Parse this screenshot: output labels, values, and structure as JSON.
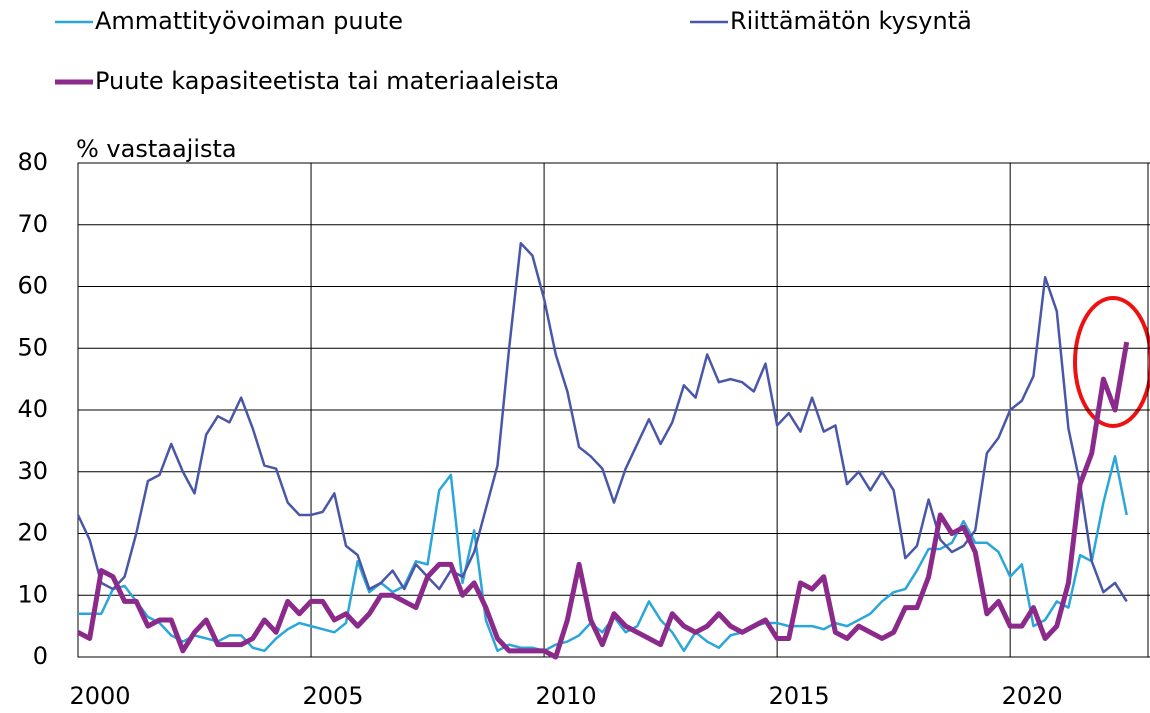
{
  "chart_data": {
    "type": "line",
    "y_label": "% vastaajista",
    "x": [
      2000,
      2000.25,
      2000.5,
      2000.75,
      2001,
      2001.25,
      2001.5,
      2001.75,
      2002,
      2002.25,
      2002.5,
      2002.75,
      2003,
      2003.25,
      2003.5,
      2003.75,
      2004,
      2004.25,
      2004.5,
      2004.75,
      2005,
      2005.25,
      2005.5,
      2005.75,
      2006,
      2006.25,
      2006.5,
      2006.75,
      2007,
      2007.25,
      2007.5,
      2007.75,
      2008,
      2008.25,
      2008.5,
      2008.75,
      2009,
      2009.25,
      2009.5,
      2009.75,
      2010,
      2010.25,
      2010.5,
      2010.75,
      2011,
      2011.25,
      2011.5,
      2011.75,
      2012,
      2012.25,
      2012.5,
      2012.75,
      2013,
      2013.25,
      2013.5,
      2013.75,
      2014,
      2014.25,
      2014.5,
      2014.75,
      2015,
      2015.25,
      2015.5,
      2015.75,
      2016,
      2016.25,
      2016.5,
      2016.75,
      2017,
      2017.25,
      2017.5,
      2017.75,
      2018,
      2018.25,
      2018.5,
      2018.75,
      2019,
      2019.25,
      2019.5,
      2019.75,
      2020,
      2020.25,
      2020.5,
      2020.75,
      2021,
      2021.25,
      2021.5,
      2021.75,
      2022,
      2022.25,
      2022.5
    ],
    "series": [
      {
        "name": "Ammattityövoiman puute",
        "color": "#2ba6d9",
        "values": [
          7,
          7,
          7,
          11,
          11.5,
          9,
          6.5,
          5.5,
          3.5,
          2.5,
          3.5,
          3,
          2.5,
          3.5,
          3.5,
          1.5,
          1,
          3,
          4.5,
          5.5,
          5,
          4.5,
          4,
          5.5,
          15.5,
          10.5,
          12,
          10.5,
          11.5,
          15.5,
          15,
          27,
          29.5,
          12,
          20.5,
          6,
          1,
          2,
          1.5,
          1.5,
          1,
          2,
          2.5,
          3.5,
          5.5,
          4,
          6.5,
          4,
          5,
          9,
          6,
          4,
          1,
          4,
          2.5,
          1.5,
          3.5,
          4,
          5,
          5.5,
          5.5,
          5,
          5,
          5,
          4.5,
          5.5,
          5,
          6,
          7,
          9,
          10.5,
          11,
          14,
          17.5,
          17.5,
          18.5,
          22,
          18.5,
          18.5,
          17,
          13,
          15,
          5,
          6,
          9,
          8,
          16.5,
          15.5,
          25,
          32.5,
          23
        ]
      },
      {
        "name": "Riittämätön kysyntä",
        "color": "#4a57a8",
        "values": [
          23,
          19,
          12,
          11,
          13,
          20,
          28.5,
          29.5,
          34.5,
          30,
          26.5,
          36,
          39,
          38,
          42,
          37,
          31,
          30.5,
          25,
          23,
          23,
          23.5,
          26.5,
          18,
          16.5,
          11,
          12,
          14,
          11,
          15,
          13,
          11,
          14,
          13,
          17,
          24,
          31,
          50,
          67,
          65,
          58,
          49,
          43,
          34,
          32.5,
          30.5,
          25,
          30.5,
          34.5,
          38.5,
          34.5,
          38,
          44,
          42,
          49,
          44.5,
          45,
          44.5,
          43,
          47.5,
          37.5,
          39.5,
          36.5,
          42,
          36.5,
          37.5,
          28,
          30,
          27,
          30,
          27,
          16,
          18,
          25.5,
          19,
          17,
          18,
          20.5,
          33,
          35.5,
          40,
          41.5,
          45.5,
          61.5,
          56,
          37,
          28,
          15.5,
          10.5,
          12,
          9
        ]
      },
      {
        "name": "Puute kapasiteetista tai materiaaleista",
        "color": "#8b2a8a",
        "values": [
          4,
          3,
          14,
          13,
          9,
          9,
          5,
          6,
          6,
          1,
          4,
          6,
          2,
          2,
          2,
          3,
          6,
          4,
          9,
          7,
          9,
          9,
          6,
          7,
          5,
          7,
          10,
          10,
          9,
          8,
          13,
          15,
          15,
          10,
          12,
          8,
          3,
          1,
          1,
          1,
          1,
          0,
          6,
          15,
          6,
          2,
          7,
          5,
          4,
          3,
          2,
          7,
          5,
          4,
          5,
          7,
          5,
          4,
          5,
          6,
          3,
          3,
          12,
          11,
          13,
          4,
          3,
          5,
          4,
          3,
          4,
          8,
          8,
          13,
          23,
          20,
          21,
          17,
          7,
          9,
          5,
          5,
          8,
          3,
          5,
          12,
          28,
          33,
          45,
          40,
          51
        ]
      }
    ],
    "xlim": [
      2000,
      2023
    ],
    "xticks": [
      2000,
      2005,
      2010,
      2015,
      2020
    ],
    "ylim": [
      0,
      80
    ],
    "yticks": [
      0,
      10,
      20,
      30,
      40,
      50,
      60,
      70,
      80
    ],
    "grid": true
  }
}
